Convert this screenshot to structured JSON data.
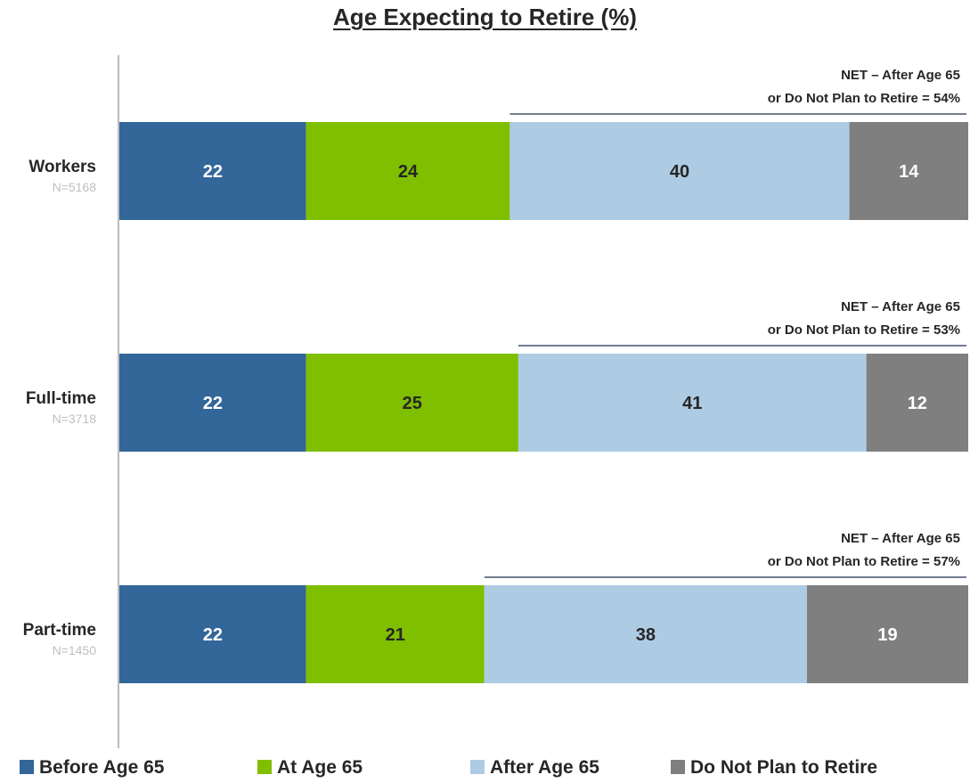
{
  "chart_data": {
    "type": "bar",
    "orientation": "horizontal",
    "stacked": true,
    "title": "Age Expecting to Retire (%)",
    "xlim": [
      0,
      100
    ],
    "grid": false,
    "legend_position": "bottom",
    "categories": [
      {
        "label": "Workers",
        "n": "N=5168"
      },
      {
        "label": "Full-time",
        "n": "N=3718"
      },
      {
        "label": "Part-time",
        "n": "N=1450"
      }
    ],
    "series": [
      {
        "name": "Before Age 65",
        "color": "#336699",
        "label_color": "#ffffff",
        "values": [
          22,
          22,
          22
        ]
      },
      {
        "name": "At Age 65",
        "color": "#7fbf00",
        "label_color": "#262626",
        "values": [
          24,
          25,
          21
        ]
      },
      {
        "name": "After Age 65",
        "color": "#aecbe4",
        "label_color": "#262626",
        "values": [
          40,
          41,
          38
        ]
      },
      {
        "name": "Do Not Plan to Retire",
        "color": "#7f7f7f",
        "label_color": "#ffffff",
        "values": [
          14,
          12,
          19
        ]
      }
    ],
    "annotations": [
      {
        "line1": "NET – After Age 65",
        "line2": "or Do Not Plan to Retire = 54%",
        "value": 54
      },
      {
        "line1": "NET – After Age 65",
        "line2": "or Do Not Plan to Retire = 53%",
        "value": 53
      },
      {
        "line1": "NET – After Age 65",
        "line2": "or Do Not Plan to Retire = 57%",
        "value": 57
      }
    ]
  }
}
